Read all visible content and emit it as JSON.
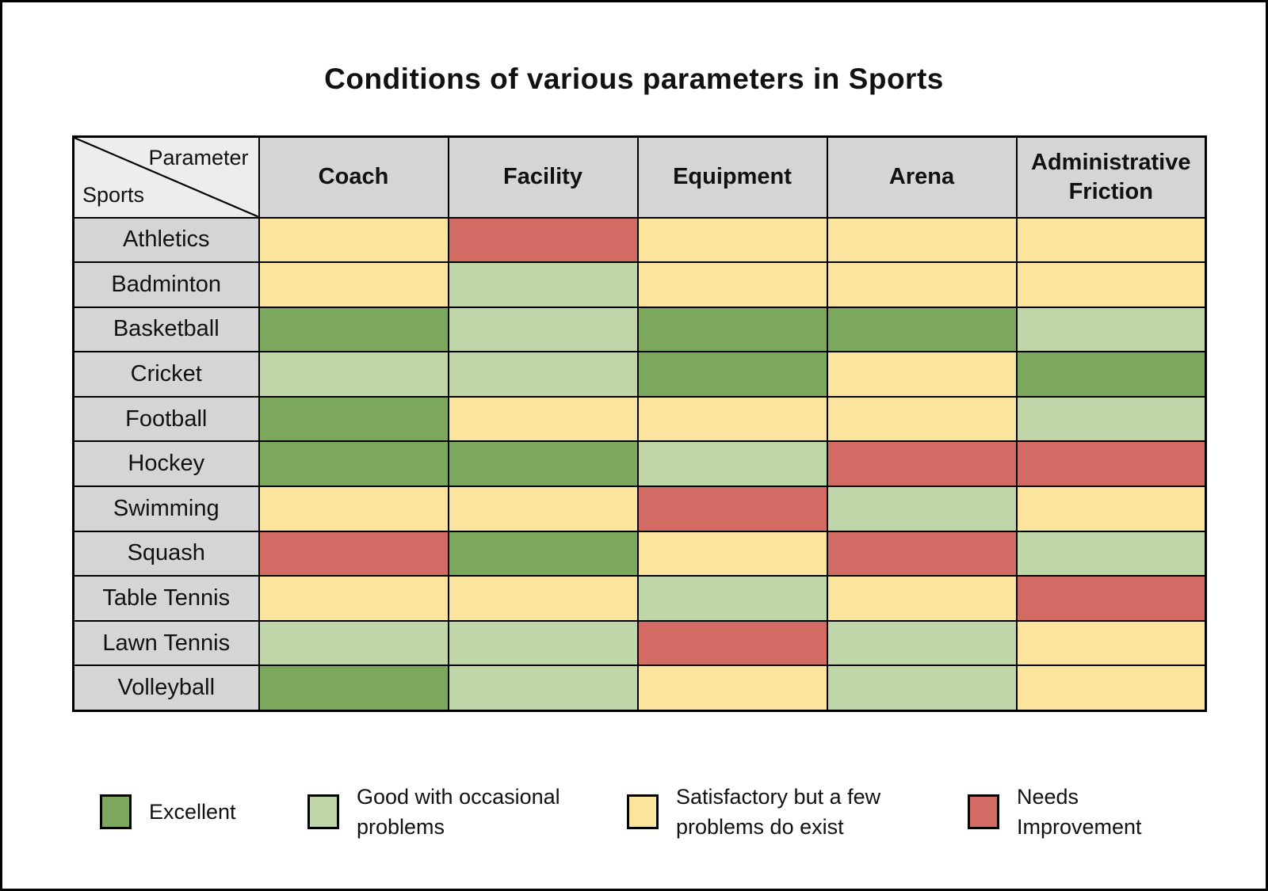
{
  "title": "Conditions of various parameters in Sports",
  "corner": {
    "top_label": "Parameter",
    "bottom_label": "Sports"
  },
  "chart_data": {
    "type": "heatmap",
    "title": "Conditions of various parameters in Sports",
    "columns": [
      "Coach",
      "Facility",
      "Equipment",
      "Arena",
      "Administrative Friction"
    ],
    "rows": [
      "Athletics",
      "Badminton",
      "Basketball",
      "Cricket",
      "Football",
      "Hockey",
      "Swimming",
      "Squash",
      "Table Tennis",
      "Lawn Tennis",
      "Volleyball"
    ],
    "values": [
      [
        "satisfactory",
        "needs_improvement",
        "satisfactory",
        "satisfactory",
        "satisfactory"
      ],
      [
        "satisfactory",
        "good",
        "satisfactory",
        "satisfactory",
        "satisfactory"
      ],
      [
        "excellent",
        "good",
        "excellent",
        "excellent",
        "good"
      ],
      [
        "good",
        "good",
        "excellent",
        "satisfactory",
        "excellent"
      ],
      [
        "excellent",
        "satisfactory",
        "satisfactory",
        "satisfactory",
        "good"
      ],
      [
        "excellent",
        "excellent",
        "good",
        "needs_improvement",
        "needs_improvement"
      ],
      [
        "satisfactory",
        "satisfactory",
        "needs_improvement",
        "good",
        "satisfactory"
      ],
      [
        "needs_improvement",
        "excellent",
        "satisfactory",
        "needs_improvement",
        "good"
      ],
      [
        "satisfactory",
        "satisfactory",
        "good",
        "satisfactory",
        "needs_improvement"
      ],
      [
        "good",
        "good",
        "needs_improvement",
        "good",
        "satisfactory"
      ],
      [
        "excellent",
        "good",
        "satisfactory",
        "good",
        "satisfactory"
      ]
    ],
    "legend": [
      {
        "key": "excellent",
        "label": "Excellent",
        "color": "#7BA85D"
      },
      {
        "key": "good",
        "label": "Good with occasional problems",
        "color": "#BFD6A9"
      },
      {
        "key": "satisfactory",
        "label": "Satisfactory but a few problems do exist",
        "color": "#FBE49D"
      },
      {
        "key": "needs_improvement",
        "label": "Needs Improvement",
        "color": "#D26B64"
      }
    ],
    "legend_position": "bottom",
    "grid": true
  },
  "colors": {
    "page_bg": "#FFFFFF",
    "grid_line": "#000000",
    "header_bg": "#D5D5D5",
    "corner_bg": "#EDEDED",
    "rating_colors": {
      "excellent": "#7BA85D",
      "good": "#BFD6A9",
      "satisfactory": "#FBE49D",
      "needs_improvement": "#D26B64"
    }
  }
}
